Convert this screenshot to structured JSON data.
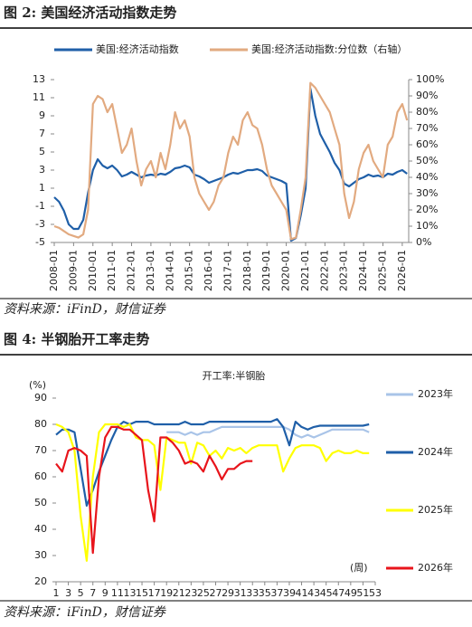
{
  "figures": [
    {
      "caption": "图 2:  美国经济活动指数走势",
      "source": "资料来源：iFinD，财信证券"
    },
    {
      "caption": "图 4:  半钢胎开工率走势",
      "source": "资料来源：iFinD，财信证券"
    }
  ],
  "chart_data": [
    {
      "type": "line",
      "legend": "top",
      "x": [
        "2008-01",
        "2008-04",
        "2008-07",
        "2008-10",
        "2009-01",
        "2009-04",
        "2009-07",
        "2009-10",
        "2010-01",
        "2010-04",
        "2010-07",
        "2010-10",
        "2011-01",
        "2011-04",
        "2011-07",
        "2011-10",
        "2012-01",
        "2012-04",
        "2012-07",
        "2012-10",
        "2013-01",
        "2013-04",
        "2013-07",
        "2013-10",
        "2014-01",
        "2014-04",
        "2014-07",
        "2014-10",
        "2015-01",
        "2015-04",
        "2015-07",
        "2015-10",
        "2016-01",
        "2016-04",
        "2016-07",
        "2016-10",
        "2017-01",
        "2017-04",
        "2017-07",
        "2017-10",
        "2018-01",
        "2018-04",
        "2018-07",
        "2018-10",
        "2019-01",
        "2019-04",
        "2019-07",
        "2019-10",
        "2020-01",
        "2020-04",
        "2020-07",
        "2020-10",
        "2021-01",
        "2021-04",
        "2021-07",
        "2021-10",
        "2022-01",
        "2022-04",
        "2022-07",
        "2022-10",
        "2023-01",
        "2023-04",
        "2023-07",
        "2023-10",
        "2024-01",
        "2024-04",
        "2024-07",
        "2024-10",
        "2025-01",
        "2025-04",
        "2025-07",
        "2025-10",
        "2026-01",
        "2026-04"
      ],
      "series": [
        {
          "name": "美国:经济活动指数",
          "color": "#1f5fa8",
          "values": [
            0,
            -0.5,
            -1.5,
            -3,
            -3.5,
            -3.5,
            -2.5,
            0.5,
            3,
            4.2,
            3.5,
            3.2,
            3.5,
            3,
            2.3,
            2.5,
            2.8,
            2.5,
            2.2,
            2.4,
            2.5,
            2.4,
            2.6,
            2.5,
            2.8,
            3.2,
            3.3,
            3.5,
            3.3,
            2.5,
            2.3,
            2,
            1.6,
            1.8,
            2,
            2.2,
            2.5,
            2.7,
            2.6,
            2.8,
            3,
            3,
            3.1,
            2.9,
            2.4,
            2.2,
            2,
            1.8,
            1.5,
            -4.8,
            -4.5,
            -2,
            1,
            12,
            9,
            7,
            6,
            5,
            3.8,
            3,
            1.5,
            1.2,
            1.6,
            2,
            2.2,
            2.5,
            2.3,
            2.4,
            2.2,
            2.6,
            2.5,
            2.8,
            3,
            2.6
          ]
        },
        {
          "name": "美国:经济活动指数:分位数（右轴）",
          "color": "#e2aa80",
          "axis": "y2",
          "values": [
            10,
            9,
            7,
            5,
            4,
            3,
            5,
            20,
            85,
            90,
            88,
            80,
            85,
            70,
            55,
            60,
            70,
            50,
            35,
            45,
            50,
            40,
            55,
            45,
            60,
            80,
            70,
            75,
            65,
            40,
            30,
            25,
            20,
            25,
            35,
            40,
            55,
            65,
            60,
            75,
            80,
            72,
            70,
            60,
            45,
            35,
            30,
            25,
            20,
            2,
            3,
            20,
            40,
            98,
            95,
            90,
            85,
            80,
            70,
            60,
            30,
            15,
            25,
            45,
            55,
            60,
            50,
            45,
            40,
            60,
            65,
            80,
            85,
            75
          ]
        }
      ],
      "xlim": [
        "2008-01",
        "2026-05"
      ],
      "xticks": [
        "2008-01",
        "2009-01",
        "2010-01",
        "2011-01",
        "2012-01",
        "2013-01",
        "2014-01",
        "2015-01",
        "2016-01",
        "2017-01",
        "2018-01",
        "2019-01",
        "2020-01",
        "2021-01",
        "2022-01",
        "2023-01",
        "2024-01",
        "2025-01",
        "2026-01"
      ],
      "ylim": [
        -5,
        13
      ],
      "yticks": [
        -5,
        -3,
        -1,
        1,
        3,
        5,
        7,
        9,
        11,
        13
      ],
      "y2lim": [
        0,
        100
      ],
      "y2ticks": [
        {
          "value": 0,
          "label": "0%"
        },
        {
          "value": 10,
          "label": "10%"
        },
        {
          "value": 20,
          "label": "20%"
        },
        {
          "value": 30,
          "label": "30%"
        },
        {
          "value": 40,
          "label": "40%"
        },
        {
          "value": 50,
          "label": "50%"
        },
        {
          "value": 60,
          "label": "60%"
        },
        {
          "value": 70,
          "label": "70%"
        },
        {
          "value": 80,
          "label": "80%"
        },
        {
          "value": 90,
          "label": "90%"
        },
        {
          "value": 100,
          "label": "100%"
        }
      ]
    },
    {
      "type": "line",
      "legend": "right",
      "title": "开工率:半钢胎",
      "y_label": "(%)",
      "x_label": "(周)",
      "x": [
        1,
        2,
        3,
        4,
        5,
        6,
        7,
        8,
        9,
        10,
        11,
        12,
        13,
        14,
        15,
        16,
        17,
        18,
        19,
        20,
        21,
        22,
        23,
        24,
        25,
        26,
        27,
        28,
        29,
        30,
        31,
        32,
        33,
        34,
        35,
        36,
        37,
        38,
        39,
        40,
        41,
        42,
        43,
        44,
        45,
        46,
        47,
        48,
        49,
        50,
        51,
        52,
        53
      ],
      "series": [
        {
          "name": "2023年",
          "color": "#a9c4e8",
          "values": [
            null,
            null,
            null,
            null,
            null,
            null,
            null,
            null,
            null,
            null,
            null,
            null,
            null,
            null,
            null,
            null,
            null,
            null,
            77,
            77,
            77,
            76,
            77,
            76,
            77,
            77,
            78,
            79,
            79,
            79,
            79,
            79,
            79,
            79,
            79,
            79,
            79,
            79,
            78,
            76,
            75,
            76,
            75,
            76,
            77,
            78,
            78,
            78,
            78,
            78,
            78,
            77,
            null
          ]
        },
        {
          "name": "2024年",
          "color": "#1f5fa8",
          "values": [
            76,
            78,
            78,
            77,
            63,
            49,
            55,
            62,
            68,
            74,
            79,
            81,
            80,
            81,
            81,
            81,
            80,
            80,
            80,
            80,
            80,
            81,
            80,
            80,
            80,
            81,
            81,
            81,
            81,
            81,
            81,
            81,
            81,
            81,
            81,
            81,
            82,
            79,
            72,
            81,
            79,
            78,
            79,
            79.5,
            79.5,
            79.5,
            79.5,
            79.5,
            79.5,
            79.5,
            79.5,
            80,
            null
          ]
        },
        {
          "name": "2025年",
          "color": "#ffff00",
          "values": [
            80,
            79,
            77,
            70,
            45,
            28,
            60,
            77,
            80,
            80,
            80,
            79,
            80,
            75,
            74,
            74,
            72,
            55,
            75,
            74,
            73,
            73,
            65,
            73,
            72,
            68,
            70,
            67,
            71,
            70,
            71,
            69,
            71,
            72,
            72,
            72,
            72,
            62,
            67,
            71,
            72,
            72,
            72,
            71,
            66,
            69,
            70,
            69,
            69,
            70,
            69,
            69,
            null
          ]
        },
        {
          "name": "2026年",
          "color": "#e8141b",
          "values": [
            65,
            62,
            70,
            71,
            70,
            68,
            31,
            60,
            75,
            79,
            79,
            78,
            78,
            76,
            74,
            55,
            43,
            75,
            75,
            73,
            70,
            65,
            66,
            65,
            62,
            68,
            64,
            59,
            63,
            63,
            65,
            66,
            66,
            null,
            null,
            null,
            null,
            null,
            null,
            null,
            null,
            null,
            null,
            null,
            null,
            null,
            null,
            null,
            null,
            null,
            null,
            null,
            null
          ]
        }
      ],
      "xlim": [
        1,
        53
      ],
      "xticks": [
        1,
        3,
        5,
        7,
        9,
        11,
        13,
        15,
        17,
        19,
        21,
        23,
        25,
        27,
        29,
        31,
        33,
        35,
        37,
        39,
        41,
        43,
        45,
        47,
        49,
        51,
        53
      ],
      "ylim": [
        20,
        90
      ],
      "yticks": [
        20,
        30,
        40,
        50,
        60,
        70,
        80,
        90
      ]
    }
  ]
}
